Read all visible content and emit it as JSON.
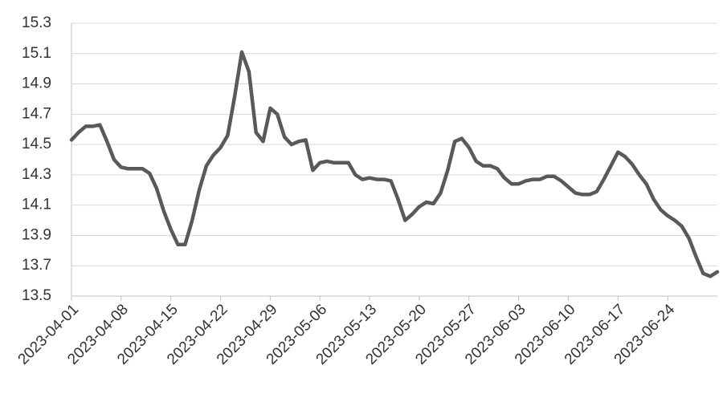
{
  "chart_data": {
    "type": "line",
    "categories": [
      "2023-04-01",
      null,
      null,
      null,
      null,
      null,
      null,
      "2023-04-08",
      null,
      null,
      null,
      null,
      null,
      null,
      "2023-04-15",
      null,
      null,
      null,
      null,
      null,
      null,
      "2023-04-22",
      null,
      null,
      null,
      null,
      null,
      null,
      "2023-04-29",
      null,
      null,
      null,
      null,
      null,
      null,
      "2023-05-06",
      null,
      null,
      null,
      null,
      null,
      null,
      "2023-05-13",
      null,
      null,
      null,
      null,
      null,
      null,
      "2023-05-20",
      null,
      null,
      null,
      null,
      null,
      null,
      "2023-05-27",
      null,
      null,
      null,
      null,
      null,
      null,
      "2023-06-03",
      null,
      null,
      null,
      null,
      null,
      null,
      "2023-06-10",
      null,
      null,
      null,
      null,
      null,
      null,
      "2023-06-17",
      null,
      null,
      null,
      null,
      null,
      null,
      "2023-06-24",
      null,
      null,
      null,
      null,
      null,
      null,
      null
    ],
    "values": [
      14.53,
      14.58,
      14.62,
      14.62,
      14.63,
      14.52,
      14.4,
      14.35,
      14.34,
      14.34,
      14.34,
      14.31,
      14.21,
      14.06,
      13.94,
      13.84,
      13.84,
      14.0,
      14.2,
      14.36,
      14.43,
      14.48,
      14.56,
      14.82,
      15.11,
      14.98,
      14.58,
      14.52,
      14.74,
      14.7,
      14.55,
      14.5,
      14.52,
      14.53,
      14.33,
      14.38,
      14.39,
      14.38,
      14.38,
      14.38,
      14.3,
      14.27,
      14.28,
      14.27,
      14.27,
      14.26,
      14.14,
      14.0,
      14.04,
      14.09,
      14.12,
      14.11,
      14.18,
      14.33,
      14.52,
      14.54,
      14.48,
      14.39,
      14.36,
      14.36,
      14.34,
      14.28,
      14.24,
      14.24,
      14.26,
      14.27,
      14.27,
      14.29,
      14.29,
      14.26,
      14.22,
      14.18,
      14.17,
      14.17,
      14.19,
      14.27,
      14.36,
      14.45,
      14.42,
      14.37,
      14.3,
      14.24,
      14.14,
      14.07,
      14.03,
      14.0,
      13.96,
      13.88,
      13.76,
      13.65,
      13.63,
      13.66
    ],
    "color": "#595959",
    "ylim": [
      13.5,
      15.3
    ],
    "yticks": [
      13.5,
      13.7,
      13.9,
      14.1,
      14.3,
      14.5,
      14.7,
      14.9,
      15.1,
      15.3
    ],
    "grid": true
  }
}
